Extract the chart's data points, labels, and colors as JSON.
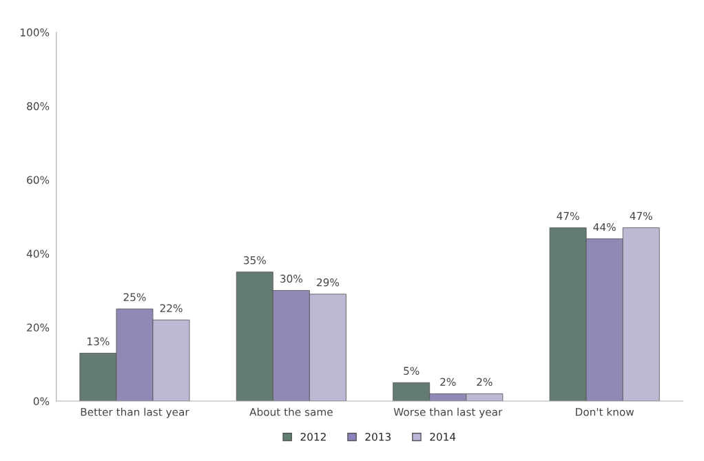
{
  "chart_data": {
    "type": "bar",
    "categories": [
      "Better than last year",
      "About the same",
      "Worse than last year",
      "Don't know"
    ],
    "series": [
      {
        "name": "2012",
        "color": "#5f7f70",
        "values": [
          13,
          35,
          5,
          47
        ],
        "value_labels": [
          "13%",
          "35%",
          "5%",
          "47%"
        ]
      },
      {
        "name": "2013",
        "color": "#8a82bd",
        "values": [
          25,
          30,
          2,
          44
        ],
        "value_labels": [
          "25%",
          "30%",
          "2%",
          "44%"
        ]
      },
      {
        "name": "2014",
        "color": "#b9b5d8",
        "values": [
          22,
          29,
          2,
          47
        ],
        "value_labels": [
          "22%",
          "29%",
          "2%",
          "47%"
        ]
      }
    ],
    "ylim": [
      0,
      100
    ],
    "yticks": [
      {
        "value": 0,
        "label": "0%"
      },
      {
        "value": 20,
        "label": "20%"
      },
      {
        "value": 40,
        "label": "40%"
      },
      {
        "value": 60,
        "label": "60%"
      },
      {
        "value": 80,
        "label": "80%"
      },
      {
        "value": 100,
        "label": "100%"
      }
    ],
    "grid": false,
    "legend": "bottom"
  }
}
